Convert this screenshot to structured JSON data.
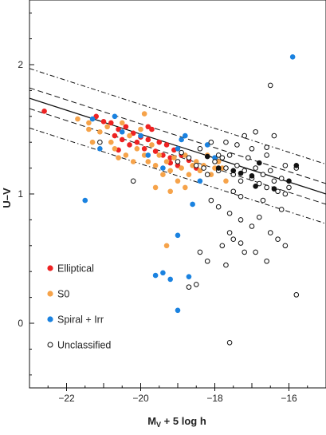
{
  "chart_data": {
    "type": "scatter",
    "xlabel_main": "M",
    "xlabel_sub": "V",
    "xlabel_rest": " + 5 log h",
    "ylabel": "U–V",
    "xlim": [
      -23,
      -15
    ],
    "ylim": [
      -0.5,
      2.5
    ],
    "x_ticks": [
      -22,
      -20,
      -18,
      -16
    ],
    "x_tick_labels": [
      "−22",
      "−20",
      "−18",
      "−16"
    ],
    "y_ticks": [
      0,
      1,
      2
    ],
    "y_tick_labels": [
      "0",
      "1",
      "2"
    ],
    "legend_position": "bottom-left",
    "grid": false,
    "series": [
      {
        "name": "Elliptical",
        "color": "#ee2222",
        "marker": "filled",
        "points": [
          [
            -22.6,
            1.64
          ],
          [
            -21.2,
            1.6
          ],
          [
            -21.0,
            1.56
          ],
          [
            -20.8,
            1.55
          ],
          [
            -20.7,
            1.45
          ],
          [
            -20.6,
            1.5
          ],
          [
            -20.5,
            1.42
          ],
          [
            -20.4,
            1.52
          ],
          [
            -20.3,
            1.38
          ],
          [
            -20.2,
            1.47
          ],
          [
            -20.1,
            1.4
          ],
          [
            -20.0,
            1.44
          ],
          [
            -19.9,
            1.35
          ],
          [
            -19.8,
            1.42
          ],
          [
            -19.7,
            1.5
          ],
          [
            -19.6,
            1.33
          ],
          [
            -19.5,
            1.4
          ],
          [
            -19.4,
            1.3
          ],
          [
            -19.3,
            1.38
          ],
          [
            -19.2,
            1.28
          ],
          [
            -19.1,
            1.34
          ],
          [
            -19.0,
            1.22
          ],
          [
            -18.9,
            1.3
          ],
          [
            -18.7,
            1.26
          ],
          [
            -18.5,
            1.2
          ],
          [
            -20.6,
            1.34
          ],
          [
            -19.8,
            1.52
          ],
          [
            -19.2,
            1.24
          ]
        ]
      },
      {
        "name": "S0",
        "color": "#f6a34a",
        "marker": "filled",
        "points": [
          [
            -21.7,
            1.58
          ],
          [
            -21.4,
            1.55
          ],
          [
            -21.1,
            1.48
          ],
          [
            -20.9,
            1.52
          ],
          [
            -20.8,
            1.4
          ],
          [
            -20.7,
            1.35
          ],
          [
            -20.5,
            1.55
          ],
          [
            -20.4,
            1.3
          ],
          [
            -20.3,
            1.45
          ],
          [
            -20.2,
            1.25
          ],
          [
            -20.1,
            1.35
          ],
          [
            -20.0,
            1.5
          ],
          [
            -19.9,
            1.3
          ],
          [
            -19.8,
            1.25
          ],
          [
            -19.7,
            1.38
          ],
          [
            -19.6,
            1.22
          ],
          [
            -19.5,
            1.3
          ],
          [
            -19.4,
            1.15
          ],
          [
            -19.3,
            1.25
          ],
          [
            -19.2,
            1.18
          ],
          [
            -19.1,
            1.28
          ],
          [
            -19.0,
            1.1
          ],
          [
            -18.9,
            1.2
          ],
          [
            -18.8,
            1.3
          ],
          [
            -18.7,
            1.15
          ],
          [
            -18.6,
            1.22
          ],
          [
            -18.5,
            1.25
          ],
          [
            -18.4,
            1.18
          ],
          [
            -18.3,
            1.22
          ],
          [
            -18.2,
            1.3
          ],
          [
            -18.1,
            1.15
          ],
          [
            -18.0,
            1.2
          ],
          [
            -17.9,
            1.25
          ],
          [
            -17.8,
            1.2
          ],
          [
            -17.7,
            1.1
          ],
          [
            -19.6,
            1.05
          ],
          [
            -19.2,
            1.02
          ],
          [
            -18.8,
            1.05
          ],
          [
            -21.4,
            1.5
          ],
          [
            -20.6,
            1.28
          ],
          [
            -19.3,
            0.6
          ],
          [
            -19.9,
            1.62
          ],
          [
            -21.3,
            1.4
          ]
        ]
      },
      {
        "name": "Spiral + Irr",
        "color": "#1a82e0",
        "marker": "filled",
        "points": [
          [
            -21.3,
            1.58
          ],
          [
            -21.1,
            1.35
          ],
          [
            -20.7,
            1.6
          ],
          [
            -20.5,
            1.48
          ],
          [
            -20.0,
            1.45
          ],
          [
            -19.8,
            1.3
          ],
          [
            -19.4,
            1.2
          ],
          [
            -19.0,
            1.35
          ],
          [
            -18.8,
            1.45
          ],
          [
            -18.4,
            1.1
          ],
          [
            -18.2,
            1.38
          ],
          [
            -18.0,
            1.28
          ],
          [
            -21.5,
            0.95
          ],
          [
            -18.6,
            0.92
          ],
          [
            -19.0,
            0.68
          ],
          [
            -19.6,
            0.37
          ],
          [
            -19.4,
            0.39
          ],
          [
            -19.2,
            0.34
          ],
          [
            -18.7,
            0.36
          ],
          [
            -19.0,
            0.1
          ],
          [
            -15.9,
            2.06
          ],
          [
            -18.9,
            1.42
          ]
        ]
      },
      {
        "name": "Unclassified",
        "color": "#111111",
        "marker": "open",
        "points": [
          [
            -21.1,
            1.4
          ],
          [
            -20.2,
            1.1
          ],
          [
            -19.0,
            1.25
          ],
          [
            -18.9,
            1.32
          ],
          [
            -18.7,
            1.28
          ],
          [
            -18.5,
            1.22
          ],
          [
            -18.3,
            1.2
          ],
          [
            -18.2,
            1.15
          ],
          [
            -18.0,
            1.25
          ],
          [
            -17.9,
            1.18
          ],
          [
            -17.8,
            1.28
          ],
          [
            -17.7,
            1.2
          ],
          [
            -17.6,
            1.3
          ],
          [
            -17.5,
            1.15
          ],
          [
            -17.4,
            1.22
          ],
          [
            -17.3,
            1.1
          ],
          [
            -17.2,
            1.18
          ],
          [
            -17.1,
            1.28
          ],
          [
            -17.0,
            1.12
          ],
          [
            -16.9,
            1.2
          ],
          [
            -16.8,
            1.08
          ],
          [
            -16.7,
            1.15
          ],
          [
            -16.6,
            1.05
          ],
          [
            -16.5,
            1.18
          ],
          [
            -16.4,
            1.1
          ],
          [
            -16.3,
            1.02
          ],
          [
            -16.2,
            1.12
          ],
          [
            -16.1,
            1.0
          ],
          [
            -17.7,
            1.4
          ],
          [
            -17.4,
            1.38
          ],
          [
            -17.0,
            1.35
          ],
          [
            -16.6,
            1.3
          ],
          [
            -16.4,
            1.45
          ],
          [
            -16.1,
            1.22
          ],
          [
            -15.8,
            1.2
          ],
          [
            -17.9,
            0.9
          ],
          [
            -17.6,
            0.85
          ],
          [
            -17.3,
            0.8
          ],
          [
            -17.0,
            0.75
          ],
          [
            -16.8,
            0.82
          ],
          [
            -16.5,
            0.7
          ],
          [
            -16.3,
            0.65
          ],
          [
            -16.1,
            0.6
          ],
          [
            -17.5,
            0.65
          ],
          [
            -17.2,
            0.55
          ],
          [
            -16.9,
            0.55
          ],
          [
            -17.8,
            0.6
          ],
          [
            -17.6,
            0.7
          ],
          [
            -18.4,
            0.55
          ],
          [
            -18.2,
            0.48
          ],
          [
            -18.5,
            0.3
          ],
          [
            -18.7,
            0.28
          ],
          [
            -17.7,
            0.45
          ],
          [
            -17.3,
            0.62
          ],
          [
            -16.6,
            0.48
          ],
          [
            -15.8,
            0.22
          ],
          [
            -17.6,
            -0.15
          ],
          [
            -16.5,
            1.84
          ],
          [
            -16.6,
            1.36
          ],
          [
            -16.9,
            1.48
          ],
          [
            -17.2,
            1.45
          ],
          [
            -17.9,
            1.3
          ],
          [
            -18.1,
            1.4
          ],
          [
            -18.4,
            1.35
          ],
          [
            -17.3,
            0.98
          ],
          [
            -16.7,
            0.95
          ],
          [
            -16.2,
            0.88
          ],
          [
            -18.1,
            0.95
          ],
          [
            -17.5,
            1.02
          ],
          [
            -16.0,
            1.05
          ]
        ]
      },
      {
        "name": "",
        "color": "#111111",
        "marker": "filled",
        "points": [
          [
            -17.9,
            1.2
          ],
          [
            -17.5,
            1.18
          ],
          [
            -17.0,
            1.14
          ],
          [
            -16.8,
            1.24
          ],
          [
            -16.4,
            1.04
          ],
          [
            -15.8,
            1.22
          ],
          [
            -18.2,
            1.29
          ],
          [
            -17.3,
            1.16
          ],
          [
            -16.9,
            1.06
          ],
          [
            -16.0,
            1.1
          ]
        ]
      }
    ],
    "lines": [
      {
        "style": "solid",
        "points": [
          [
            -23,
            1.74
          ],
          [
            -15,
            1.0
          ]
        ]
      },
      {
        "style": "dashed",
        "points": [
          [
            -23,
            1.82
          ],
          [
            -15,
            1.08
          ]
        ]
      },
      {
        "style": "dashed",
        "points": [
          [
            -23,
            1.66
          ],
          [
            -15,
            0.92
          ]
        ]
      },
      {
        "style": "dashdot",
        "points": [
          [
            -23,
            1.97
          ],
          [
            -15,
            1.23
          ]
        ]
      },
      {
        "style": "dashdot",
        "points": [
          [
            -23,
            1.51
          ],
          [
            -15,
            0.77
          ]
        ]
      }
    ]
  }
}
